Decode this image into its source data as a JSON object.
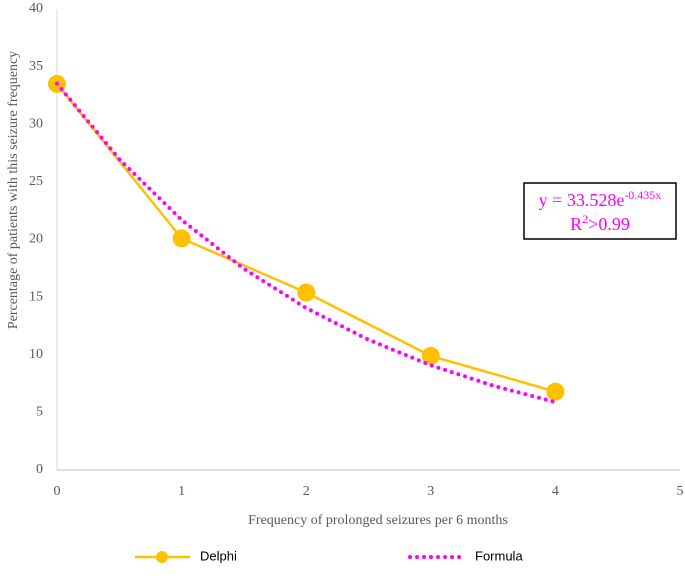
{
  "chart_data": {
    "type": "line",
    "x_label": "Frequency of prolonged seizures per 6 months",
    "y_label": "Percentage of patients with this seizure frequency",
    "xlim": [
      0,
      5
    ],
    "xticks": [
      0,
      1,
      2,
      3,
      4,
      5
    ],
    "ylim": [
      0,
      40
    ],
    "yticks": [
      0,
      5,
      10,
      15,
      20,
      25,
      30,
      35,
      40
    ],
    "grid": false,
    "legend": "bottom",
    "series": [
      {
        "name": "Delphi",
        "color": "#FFC000",
        "style": "solid-markers",
        "x": [
          0,
          1,
          2,
          3,
          4
        ],
        "values": [
          33.5,
          20.1,
          15.4,
          9.9,
          6.8
        ]
      },
      {
        "name": "Formula",
        "color": "#FF00FF",
        "style": "dotted",
        "x": [
          0,
          0.5,
          1,
          1.5,
          2,
          2.5,
          3,
          3.5,
          4
        ],
        "values": [
          33.53,
          26.97,
          21.7,
          17.46,
          14.05,
          11.3,
          9.09,
          7.32,
          5.89
        ]
      }
    ],
    "annotation": {
      "equation_base": "y = 33.528e",
      "equation_exponent": "-0.435x",
      "r_base": "R",
      "r_exponent": "2",
      "r_rest": ">0.99"
    }
  }
}
